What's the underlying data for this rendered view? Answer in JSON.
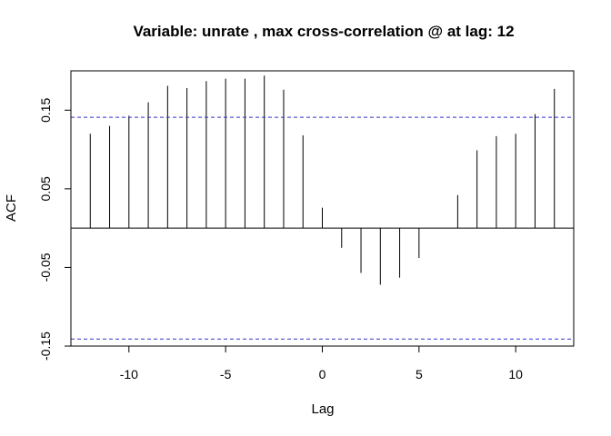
{
  "chart_data": {
    "type": "bar",
    "title": "Variable: unrate , max cross-correlation @ at lag: 12",
    "xlabel": "Lag",
    "ylabel": "ACF",
    "xlim": [
      -13,
      13
    ],
    "ylim": [
      -0.15,
      0.2
    ],
    "x_ticks": [
      -10,
      -5,
      0,
      5,
      10
    ],
    "y_ticks": [
      -0.15,
      -0.05,
      0.05,
      0.15
    ],
    "x_tick_labels": [
      "-10",
      "-5",
      "0",
      "5",
      "10"
    ],
    "y_tick_labels": [
      "-0.15",
      "-0.05",
      "0.05",
      "0.15"
    ],
    "confidence_band": 0.141,
    "confidence_color": "#3333cc",
    "grid": false,
    "x": [
      -12,
      -11,
      -10,
      -9,
      -8,
      -7,
      -6,
      -5,
      -4,
      -3,
      -2,
      -1,
      0,
      1,
      2,
      3,
      4,
      5,
      6,
      7,
      8,
      9,
      10,
      11,
      12
    ],
    "values": [
      0.12,
      0.13,
      0.143,
      0.16,
      0.181,
      0.178,
      0.187,
      0.19,
      0.19,
      0.194,
      0.176,
      0.118,
      0.026,
      -0.025,
      -0.057,
      -0.072,
      -0.063,
      -0.038,
      0.0,
      0.042,
      0.099,
      0.117,
      0.12,
      0.145,
      0.177
    ]
  }
}
